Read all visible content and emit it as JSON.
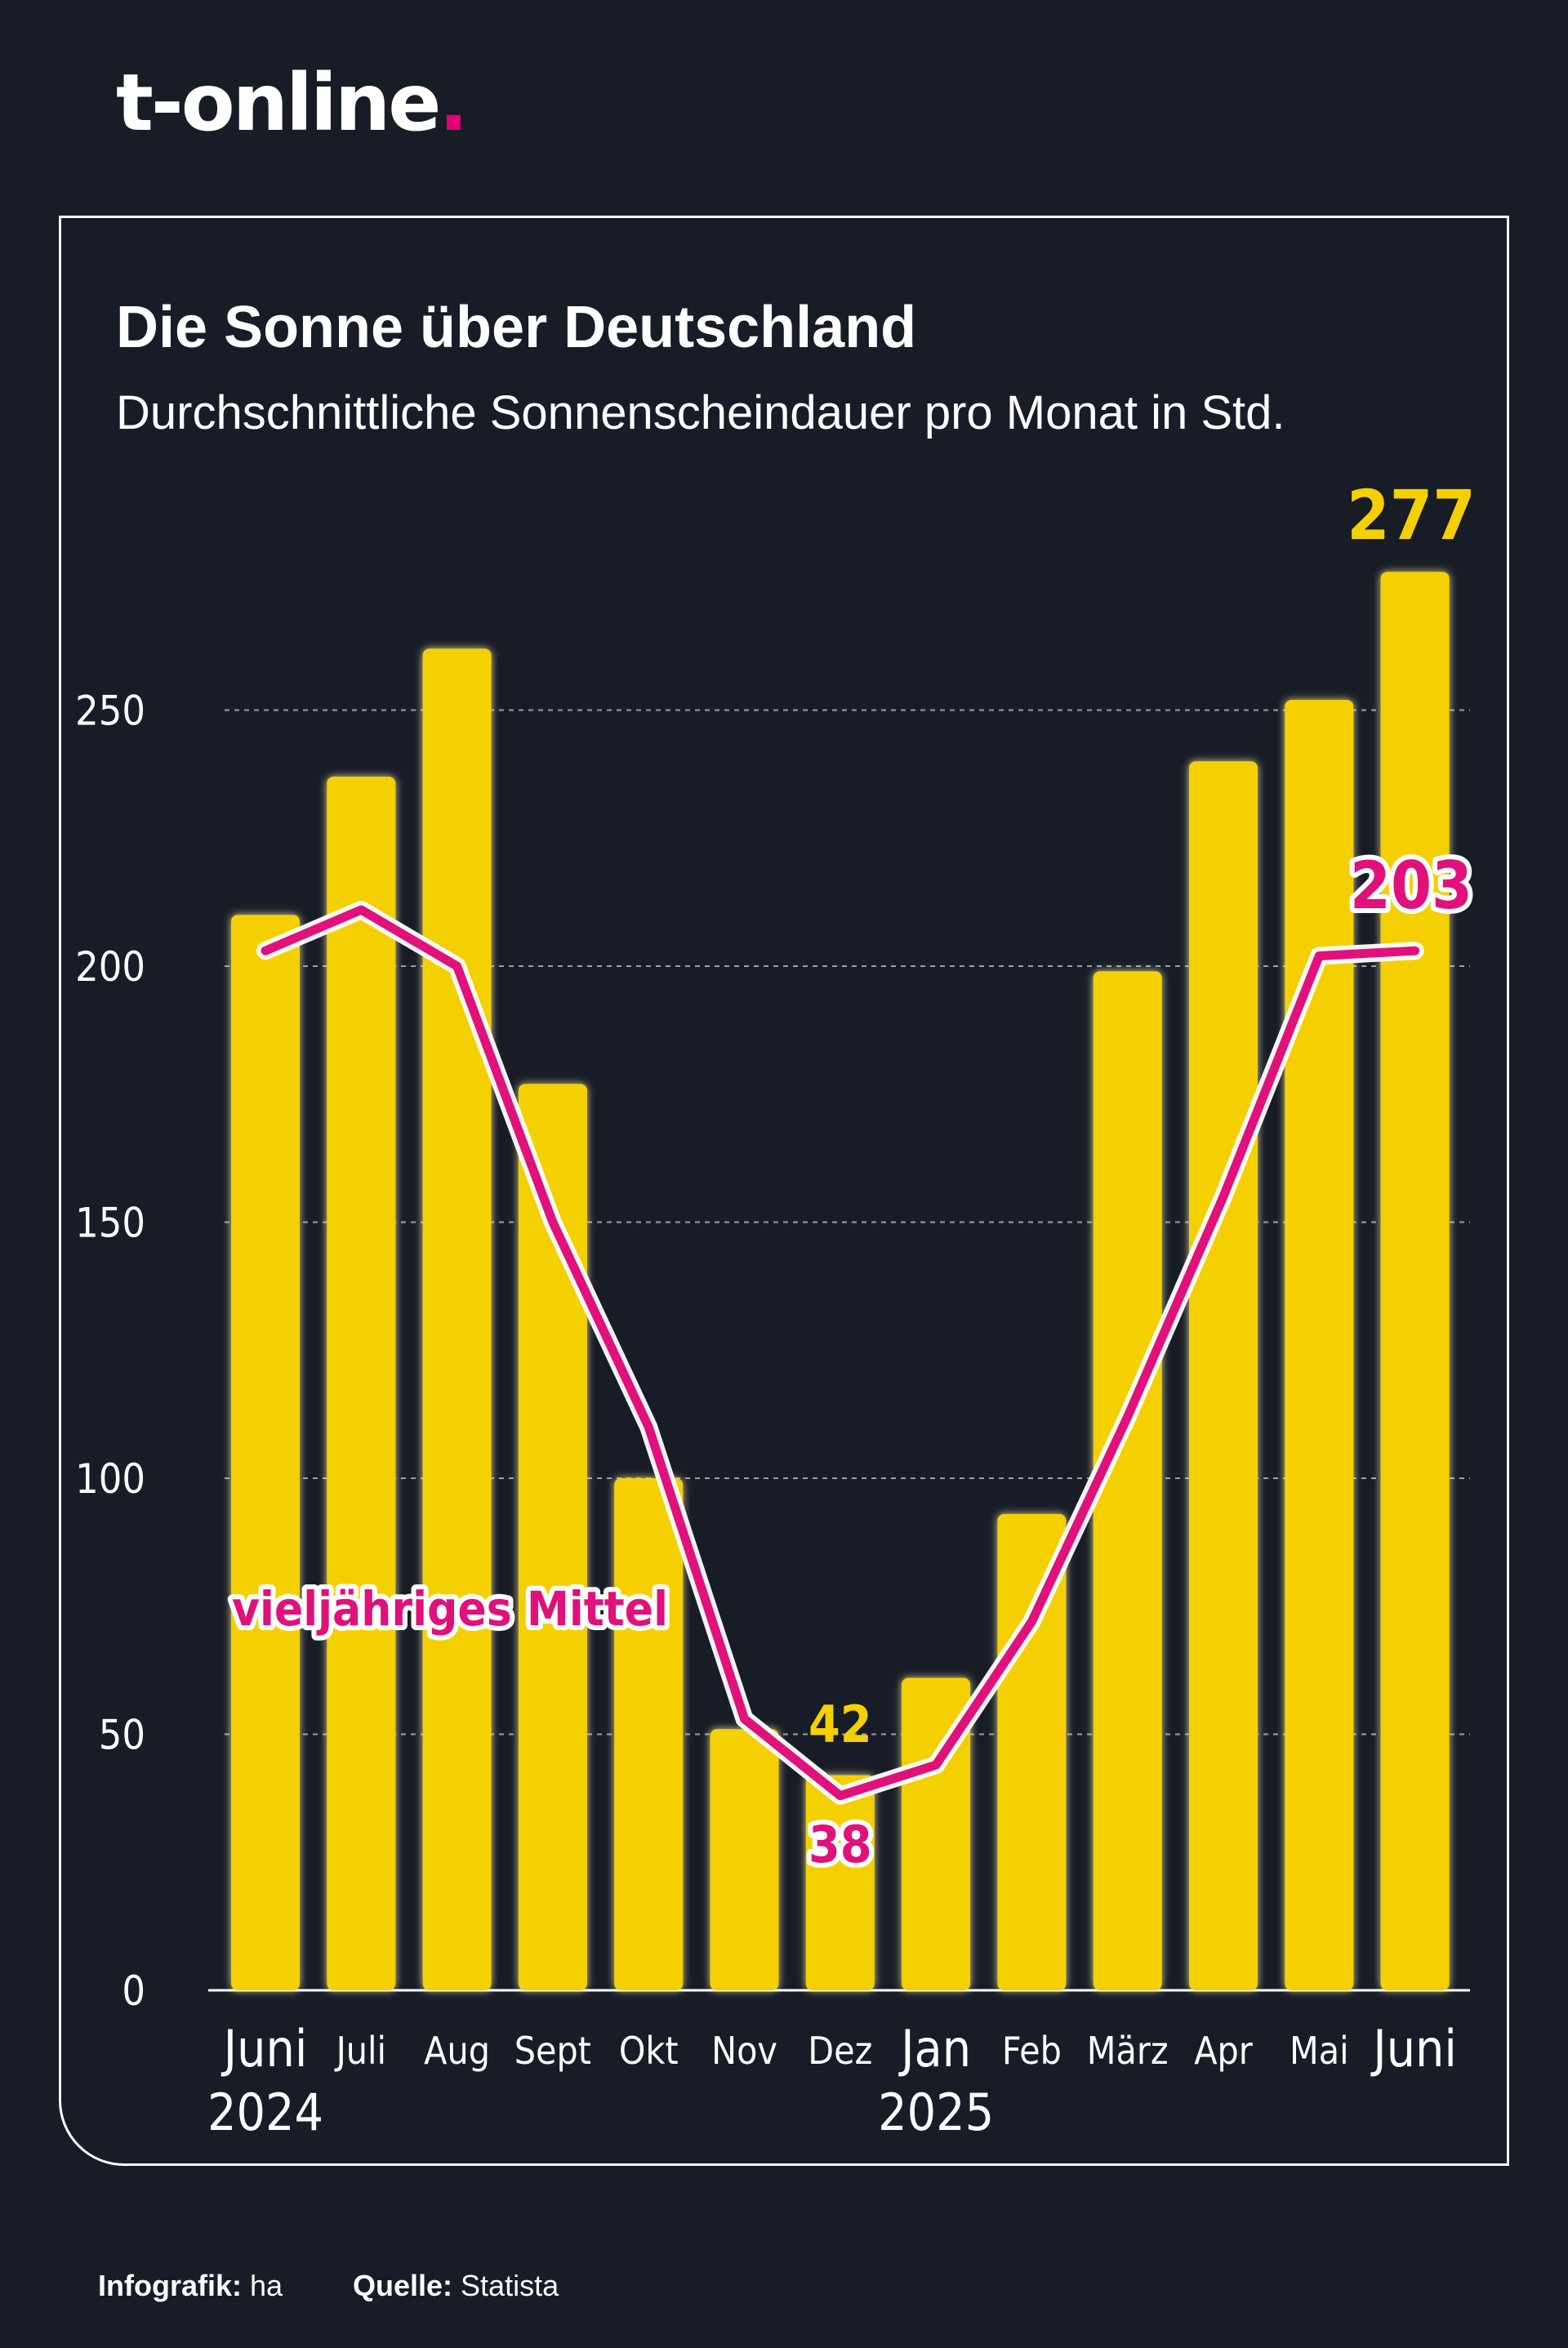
{
  "brand": {
    "name": "t-online",
    "dot": ".",
    "accent": "#e20074"
  },
  "chart_data": {
    "type": "bar",
    "title": "Die Sonne über Deutschland",
    "subtitle": "Durchschnittliche Sonnenscheindauer pro Monat in Std.",
    "categories": [
      "Juni",
      "Juli",
      "Aug",
      "Sept",
      "Okt",
      "Nov",
      "Dez",
      "Jan",
      "Feb",
      "März",
      "Apr",
      "Mai",
      "Juni"
    ],
    "year_labels": [
      "2024",
      "",
      "",
      "",
      "",
      "",
      "",
      "2025",
      "",
      "",
      "",
      "",
      ""
    ],
    "large_categories": [
      true,
      false,
      false,
      false,
      false,
      false,
      false,
      true,
      false,
      false,
      false,
      false,
      true
    ],
    "series": [
      {
        "name": "Sonnenscheindauer",
        "type": "bar",
        "color": "#f5d000",
        "values": [
          210,
          237,
          262,
          177,
          100,
          51,
          42,
          61,
          93,
          199,
          240,
          252,
          277
        ]
      },
      {
        "name": "vieljähriges Mittel",
        "type": "line",
        "color": "#e0117a",
        "values": [
          203,
          211,
          200,
          150,
          110,
          53,
          38,
          44,
          72,
          112,
          155,
          202,
          203
        ]
      }
    ],
    "yticks": [
      0,
      50,
      100,
      150,
      200,
      250
    ],
    "ylim": [
      0,
      280
    ],
    "grid": true,
    "annotations": {
      "max_bar": "277",
      "min_bar": "42",
      "line_min": "38",
      "line_end": "203",
      "line_label": "vieljähriges Mittel"
    }
  },
  "footer": {
    "graphic_label": "Infografik:",
    "graphic_value": "ha",
    "source_label": "Quelle:",
    "source_value": "Statista"
  }
}
